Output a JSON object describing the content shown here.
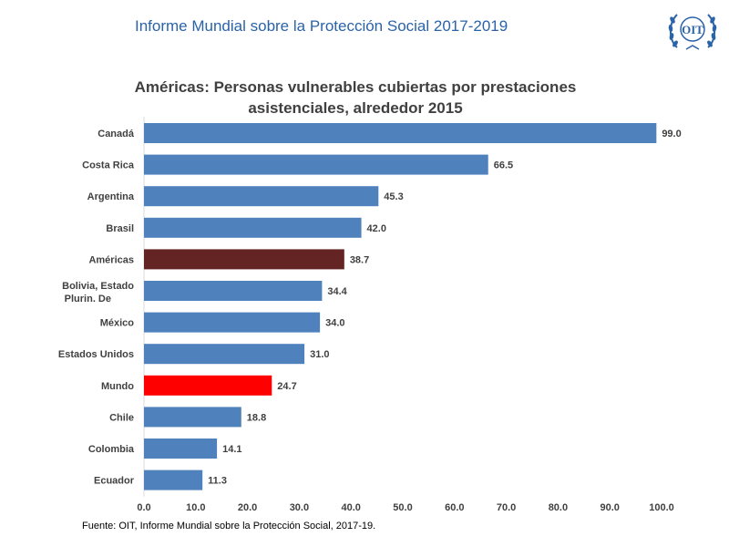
{
  "header": {
    "report_title": "Informe Mundial sobre la Protección Social 2017-2019",
    "logo_text": "OIT"
  },
  "colors": {
    "default_bar": "#4f81bd",
    "highlight_americas": "#632423",
    "highlight_mundo": "#ff0000"
  },
  "chart_data": {
    "type": "bar",
    "orientation": "horizontal",
    "title_lines": [
      "Américas: Personas vulnerables cubiertas por prestaciones",
      "asistenciales, alrededor 2015"
    ],
    "categories": [
      "Canadá",
      "Costa Rica",
      "Argentina",
      "Brasil",
      "Américas",
      "Bolivia, Estado Plurin. De",
      "México",
      "Estados Unidos",
      "Mundo",
      "Chile",
      "Colombia",
      "Ecuador"
    ],
    "values": [
      99.0,
      66.5,
      45.3,
      42.0,
      38.7,
      34.4,
      34.0,
      31.0,
      24.7,
      18.8,
      14.1,
      11.3
    ],
    "value_labels": [
      "99.0",
      "66.5",
      "45.3",
      "42.0",
      "38.7",
      "34.4",
      "34.0",
      "31.0",
      "24.7",
      "18.8",
      "14.1",
      "11.3"
    ],
    "highlight": {
      "Américas": "#632423",
      "Mundo": "#ff0000"
    },
    "xlim": [
      0,
      100
    ],
    "xticks": [
      "0.0",
      "10.0",
      "20.0",
      "30.0",
      "40.0",
      "50.0",
      "60.0",
      "70.0",
      "80.0",
      "90.0",
      "100.0"
    ],
    "grid": false,
    "legend": "none"
  },
  "footer": {
    "source": "Fuente: OIT, Informe Mundial sobre la Protección Social, 2017-19."
  }
}
